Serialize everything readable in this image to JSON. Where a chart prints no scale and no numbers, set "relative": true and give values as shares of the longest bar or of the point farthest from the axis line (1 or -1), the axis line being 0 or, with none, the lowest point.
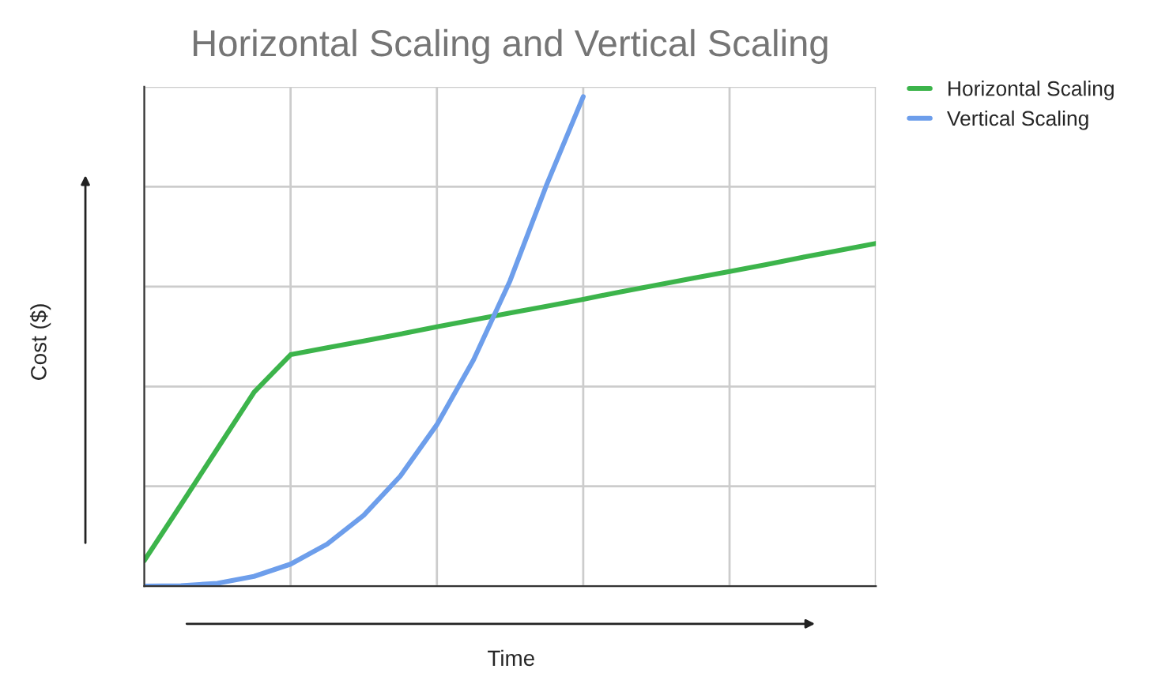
{
  "chart_data": {
    "type": "line",
    "title": "Horizontal Scaling and Vertical Scaling",
    "xlabel": "Time",
    "ylabel": "Cost ($)",
    "relative": true,
    "grid": true,
    "legend": "top right",
    "marker": "none",
    "line_style": "solid",
    "categories": [
      null,
      null,
      null,
      null,
      null,
      null,
      null,
      null,
      null,
      null,
      null,
      null,
      null,
      null,
      null,
      null,
      null,
      null,
      null,
      null,
      null
    ],
    "series": [
      {
        "name": "Horizontal Scaling",
        "color": "#3cb44b",
        "values": [
          0.052,
          0.166,
          0.281,
          0.396,
          0.473,
          0.487,
          0.501,
          0.515,
          0.53,
          0.544,
          0.558,
          0.572,
          0.586,
          0.601,
          0.615,
          0.629,
          0.643,
          0.657,
          0.672,
          0.686,
          0.7
        ]
      },
      {
        "name": "Vertical Scaling",
        "color": "#6d9eeb",
        "values": [
          0,
          0.001,
          0.006,
          0.02,
          0.045,
          0.086,
          0.145,
          0.225,
          0.33,
          0.462,
          0.624,
          0.82,
          1.0,
          null,
          null,
          null,
          null,
          null,
          null,
          null,
          null
        ]
      }
    ]
  }
}
